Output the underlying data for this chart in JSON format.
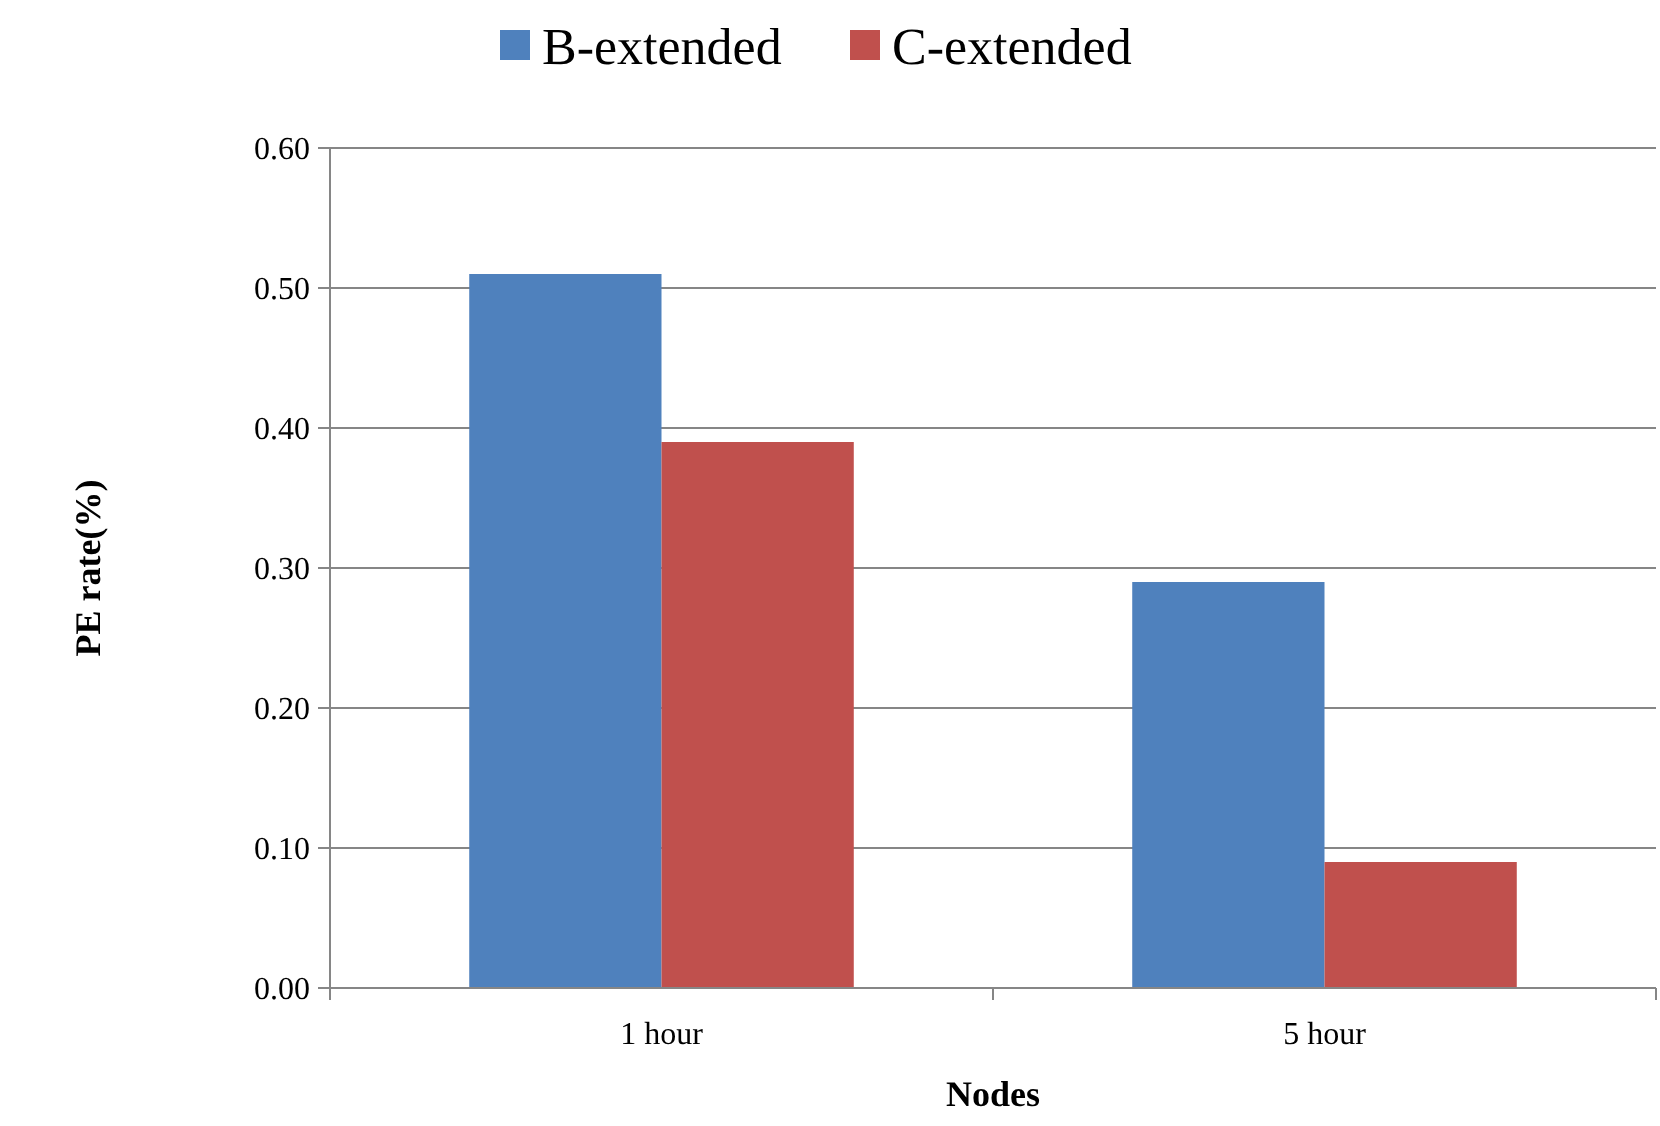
{
  "chart_data": {
    "type": "bar",
    "xlabel": "Nodes",
    "ylabel": "PE rate(%)",
    "categories": [
      "1 hour",
      "5 hour"
    ],
    "series": [
      {
        "name": "B-extended",
        "color": "#4f81bd",
        "values": [
          0.51,
          0.29
        ]
      },
      {
        "name": "C-extended",
        "color": "#c0504d",
        "values": [
          0.39,
          0.09
        ]
      }
    ],
    "ylim": [
      0,
      0.6
    ],
    "yticks": [
      {
        "value": 0,
        "label": "0.00"
      },
      {
        "value": 0.1,
        "label": "0.10"
      },
      {
        "value": 0.2,
        "label": "0.20"
      },
      {
        "value": 0.3,
        "label": "0.30"
      },
      {
        "value": 0.4,
        "label": "0.40"
      },
      {
        "value": 0.5,
        "label": "0.50"
      },
      {
        "value": 0.6,
        "label": "0.60"
      }
    ],
    "grid": "y",
    "legend": "top"
  }
}
